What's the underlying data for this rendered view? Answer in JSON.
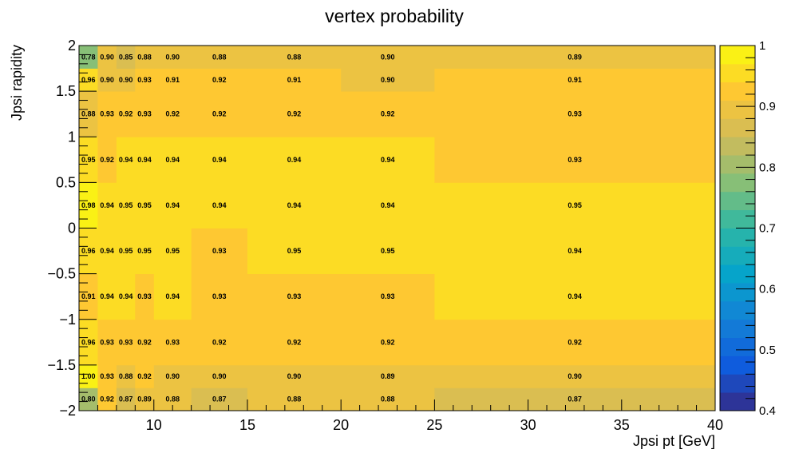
{
  "chart_data": {
    "type": "heatmap",
    "title": "vertex probability",
    "xlabel": "Jpsi pt [GeV]",
    "ylabel": "Jpsi rapidity",
    "x_edges": [
      6,
      7,
      8,
      9,
      10,
      12,
      15,
      20,
      25,
      40
    ],
    "y_edges": [
      -2,
      -1.75,
      -1.5,
      -1,
      -0.5,
      0,
      0.5,
      1,
      1.5,
      1.75,
      2
    ],
    "xlim": [
      6,
      40
    ],
    "ylim": [
      -2,
      2
    ],
    "x_ticks": [
      "10",
      "15",
      "20",
      "25",
      "30",
      "35",
      "40"
    ],
    "y_ticks": [
      "−2",
      "−1.5",
      "−1",
      "−0.5",
      "0",
      "0.5",
      "1",
      "1.5",
      "2"
    ],
    "z_ticks": [
      "0.4",
      "0.5",
      "0.6",
      "0.7",
      "0.8",
      "0.9",
      "1"
    ],
    "zlim": [
      0.4,
      1.0
    ],
    "values": [
      [
        0.8,
        0.92,
        0.87,
        0.89,
        0.88,
        0.87,
        0.88,
        0.88,
        0.87
      ],
      [
        1.0,
        0.93,
        0.88,
        0.92,
        0.9,
        0.9,
        0.9,
        0.89,
        0.9
      ],
      [
        0.96,
        0.93,
        0.93,
        0.92,
        0.93,
        0.92,
        0.92,
        0.92,
        0.92
      ],
      [
        0.91,
        0.94,
        0.94,
        0.93,
        0.94,
        0.93,
        0.93,
        0.93,
        0.94
      ],
      [
        0.96,
        0.94,
        0.95,
        0.95,
        0.95,
        0.93,
        0.95,
        0.95,
        0.94
      ],
      [
        0.98,
        0.94,
        0.95,
        0.95,
        0.94,
        0.94,
        0.94,
        0.94,
        0.95
      ],
      [
        0.95,
        0.92,
        0.94,
        0.94,
        0.94,
        0.94,
        0.94,
        0.94,
        0.93
      ],
      [
        0.88,
        0.93,
        0.92,
        0.93,
        0.92,
        0.92,
        0.92,
        0.92,
        0.93
      ],
      [
        0.96,
        0.9,
        0.9,
        0.93,
        0.91,
        0.92,
        0.91,
        0.9,
        0.91
      ],
      [
        0.78,
        0.9,
        0.85,
        0.88,
        0.9,
        0.88,
        0.88,
        0.9,
        0.89
      ]
    ],
    "palette": [
      "#352a87",
      "#0f5cdd",
      "#1481d6",
      "#06a4ca",
      "#2eb7a4",
      "#87bf77",
      "#d1bb59",
      "#fec832",
      "#f9fb0e"
    ],
    "grid": false,
    "legend": "colorbar-right"
  }
}
